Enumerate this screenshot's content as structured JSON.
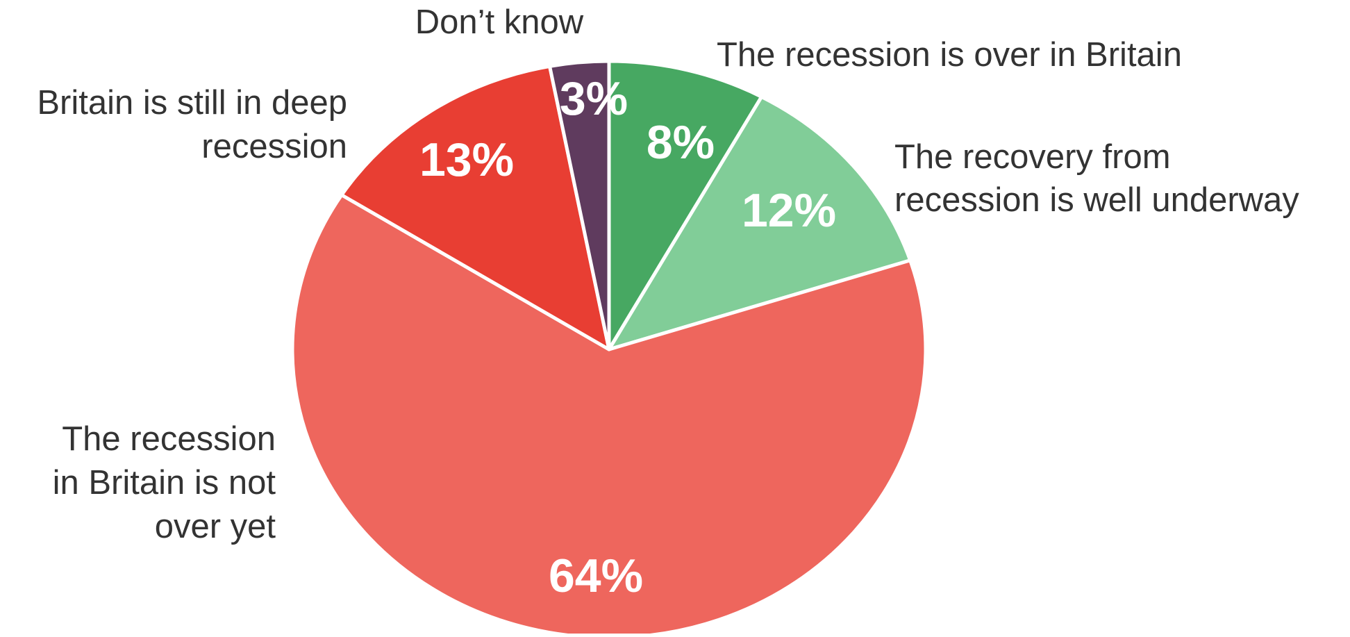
{
  "chart_data": {
    "type": "pie",
    "start_angle_deg": 0,
    "direction": "clockwise",
    "slices": [
      {
        "label_lines": [
          "The recession is over in Britain"
        ],
        "value": 8,
        "value_label": "8%",
        "color": "#47A862"
      },
      {
        "label_lines": [
          "The recovery from",
          "recession is well underway"
        ],
        "value": 12,
        "value_label": "12%",
        "color": "#81CD98"
      },
      {
        "label_lines": [
          "The recession",
          "in Britain is not",
          "over yet"
        ],
        "value": 64,
        "value_label": "64%",
        "color": "#EE665D"
      },
      {
        "label_lines": [
          "Britain is still in deep",
          "recession"
        ],
        "value": 13,
        "value_label": "13%",
        "color": "#E83E33"
      },
      {
        "label_lines": [
          "Don’t know"
        ],
        "value": 3,
        "value_label": "3%",
        "color": "#5F3B5E"
      }
    ],
    "slice_border_color": "#ffffff",
    "category_label_color": "#333333",
    "value_label_color": "#ffffff"
  }
}
